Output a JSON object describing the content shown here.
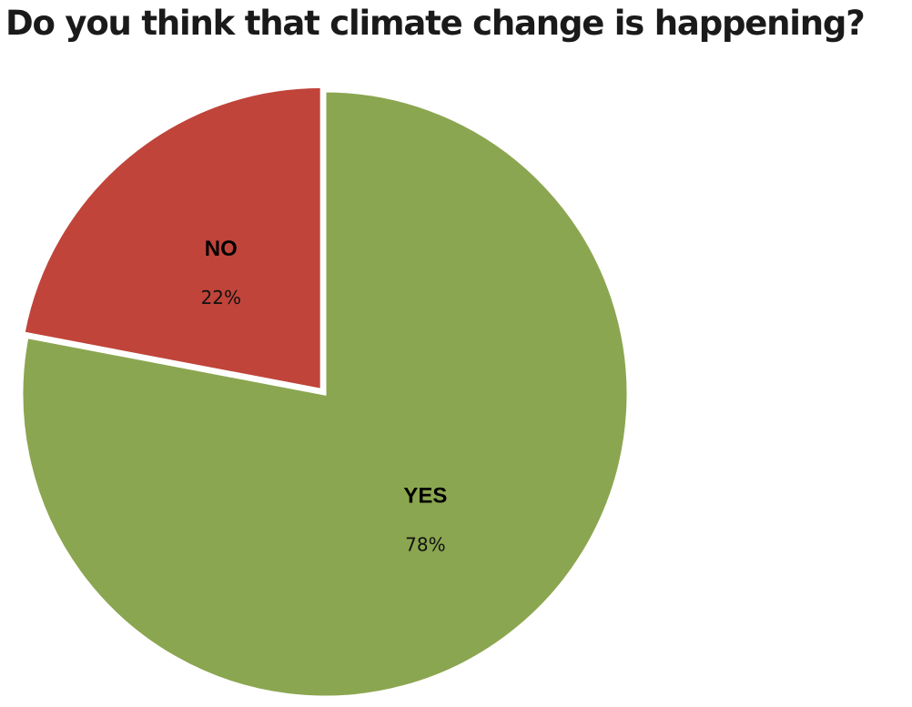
{
  "chart_data": {
    "type": "pie",
    "title": "Do you think that climate change is happening?",
    "slices": [
      {
        "label": "YES",
        "value": 78,
        "value_label": "78%",
        "color": "#8BA650"
      },
      {
        "label": "NO",
        "value": 22,
        "value_label": "22%",
        "color": "#C0443A"
      }
    ],
    "exploded_slice": "NO",
    "legend": "none"
  }
}
